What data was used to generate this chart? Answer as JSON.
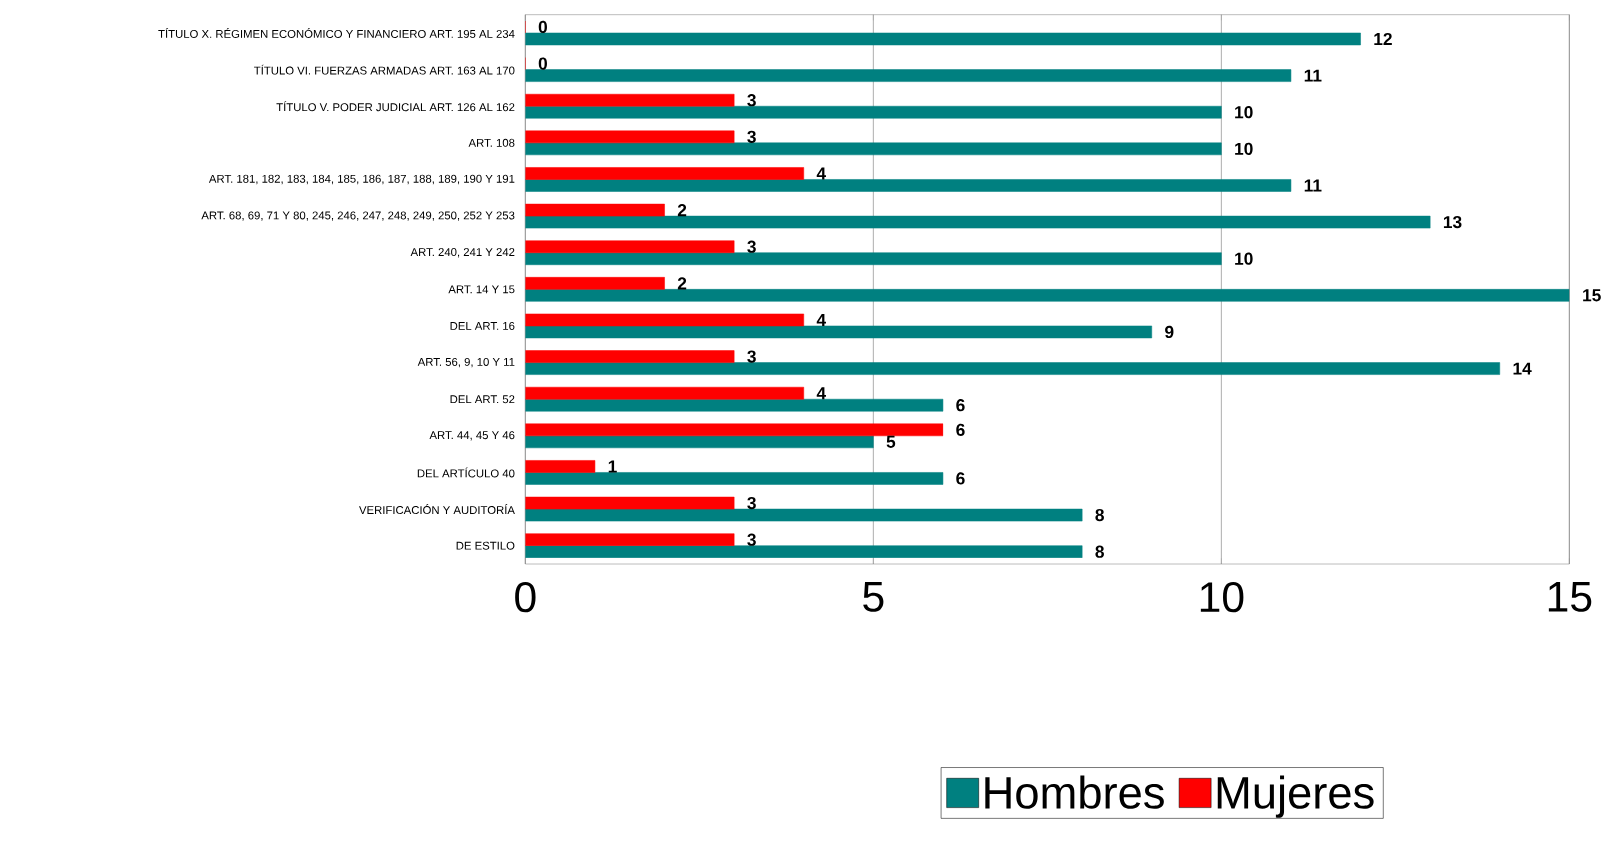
{
  "chart_data": {
    "type": "bar",
    "orientation": "horizontal",
    "categories": [
      "TÍTULO X. RÉGIMEN ECONÓMICO Y FINANCIERO ART. 195 AL 234",
      "TÍTULO VI. FUERZAS ARMADAS ART. 163 AL 170",
      "TÍTULO V. PODER JUDICIAL ART. 126 AL 162",
      "ART. 108",
      "ART. 181, 182, 183, 184, 185, 186, 187, 188, 189, 190 Y 191",
      "ART. 68, 69, 71 Y 80, 245, 246, 247, 248, 249, 250, 252 Y 253",
      "ART. 240, 241 Y 242",
      "ART. 14 Y 15",
      "DEL ART. 16",
      "ART. 56, 9, 10 Y 11",
      "DEL ART. 52",
      "ART. 44, 45 Y 46",
      "DEL ARTÍCULO 40",
      "VERIFICACIÓN Y AUDITORÍA",
      "DE ESTILO"
    ],
    "series": [
      {
        "name": "Hombres",
        "color": "#008080",
        "values": [
          12,
          11,
          10,
          10,
          11,
          13,
          10,
          15,
          9,
          14,
          6,
          5,
          6,
          8,
          8
        ]
      },
      {
        "name": "Mujeres",
        "color": "#ff0000",
        "values": [
          0,
          0,
          3,
          3,
          4,
          2,
          3,
          2,
          4,
          3,
          4,
          6,
          1,
          3,
          3
        ]
      }
    ],
    "xlim": [
      0,
      15
    ],
    "xticks": [
      0,
      5,
      10,
      15
    ],
    "grid": "x",
    "legend": "bottom",
    "data_labels": true
  }
}
